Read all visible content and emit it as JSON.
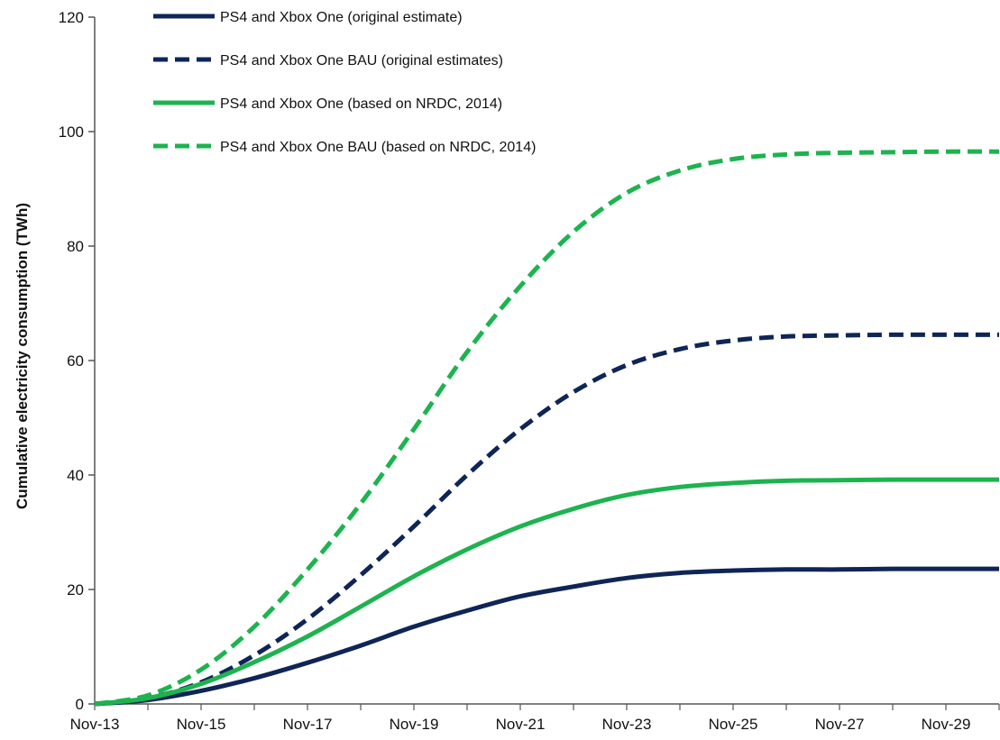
{
  "chart_data": {
    "type": "line",
    "title": "",
    "xlabel": "",
    "ylabel": "Cumulative electricity consumption (TWh)",
    "ylim": [
      0,
      120
    ],
    "yticks": [
      0,
      20,
      40,
      60,
      80,
      100,
      120
    ],
    "xticks": [
      "Nov-13",
      "Nov-15",
      "Nov-17",
      "Nov-19",
      "Nov-21",
      "Nov-23",
      "Nov-25",
      "Nov-27",
      "Nov-29"
    ],
    "x": [
      "Nov-13",
      "Nov-14",
      "Nov-15",
      "Nov-16",
      "Nov-17",
      "Nov-18",
      "Nov-19",
      "Nov-20",
      "Nov-21",
      "Nov-22",
      "Nov-23",
      "Nov-24",
      "Nov-25",
      "Nov-26",
      "Nov-27",
      "Nov-28",
      "Nov-29",
      "Nov-30"
    ],
    "grid": false,
    "legend_position": "top-left",
    "series": [
      {
        "name": "PS4 and Xbox One (original estimate)",
        "color": "#0f2557",
        "style": "solid",
        "values": [
          0,
          0.7,
          2.3,
          4.5,
          7.2,
          10.2,
          13.5,
          16.3,
          18.8,
          20.5,
          22.0,
          22.9,
          23.3,
          23.5,
          23.5,
          23.6,
          23.6,
          23.6
        ]
      },
      {
        "name": "PS4 and Xbox One BAU (original estimates)",
        "color": "#0f2557",
        "style": "dashed",
        "values": [
          0,
          1.0,
          3.8,
          8.5,
          14.8,
          22.5,
          31.0,
          40.0,
          48.0,
          54.5,
          59.2,
          62.0,
          63.5,
          64.2,
          64.4,
          64.5,
          64.5,
          64.5
        ]
      },
      {
        "name": "PS4 and Xbox One (based on NRDC, 2014)",
        "color": "#1db34f",
        "style": "solid",
        "values": [
          0,
          1.0,
          3.5,
          7.3,
          11.8,
          17.0,
          22.3,
          27.0,
          31.0,
          34.1,
          36.5,
          37.9,
          38.6,
          39.0,
          39.1,
          39.2,
          39.2,
          39.2
        ]
      },
      {
        "name": "PS4 and Xbox One BAU (based on NRDC, 2014)",
        "color": "#1db34f",
        "style": "dashed",
        "values": [
          0,
          1.5,
          6.0,
          13.5,
          23.5,
          35.0,
          48.0,
          61.5,
          73.0,
          82.5,
          89.3,
          93.2,
          95.2,
          96.0,
          96.3,
          96.4,
          96.5,
          96.5
        ]
      }
    ]
  }
}
